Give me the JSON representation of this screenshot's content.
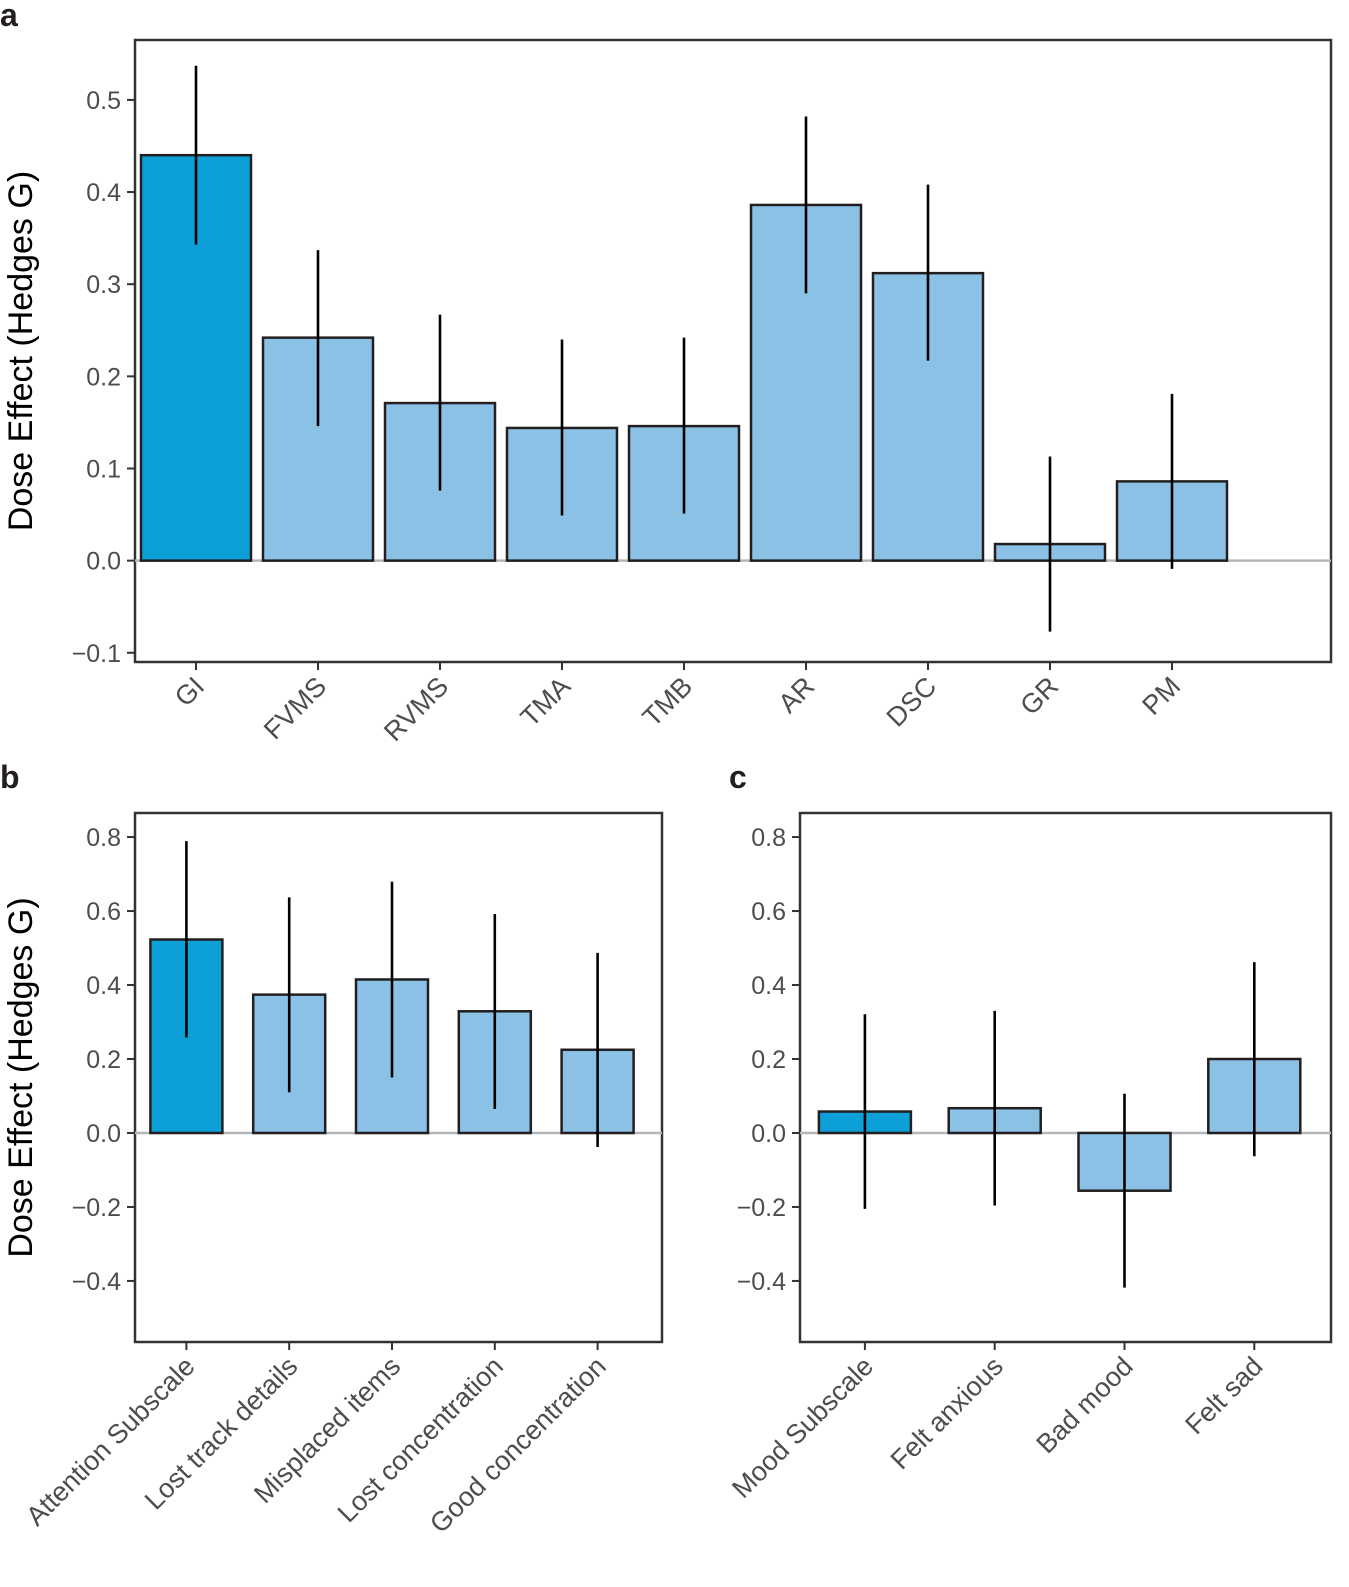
{
  "colors": {
    "highlight": "#0d9fd8",
    "normal": "#8cc1e6"
  },
  "chart_data": [
    {
      "panel": "a",
      "type": "bar",
      "ylabel": "Dose Effect (Hedges G)",
      "ylim": [
        -0.11,
        0.565
      ],
      "yticks": [
        -0.1,
        0.0,
        0.1,
        0.2,
        0.3,
        0.4,
        0.5
      ],
      "ytick_labels": [
        "−0.1",
        "0.0",
        "0.1",
        "0.2",
        "0.3",
        "0.4",
        "0.5"
      ],
      "categories": [
        "GI",
        "FVMS",
        "RVMS",
        "TMA",
        "TMB",
        "AR",
        "DSC",
        "GR",
        "PM"
      ],
      "values": [
        0.44,
        0.242,
        0.171,
        0.144,
        0.146,
        0.386,
        0.312,
        0.018,
        0.086
      ],
      "lower": [
        0.343,
        0.146,
        0.076,
        0.049,
        0.051,
        0.29,
        0.217,
        -0.077,
        -0.009
      ],
      "upper": [
        0.537,
        0.337,
        0.267,
        0.24,
        0.242,
        0.482,
        0.408,
        0.113,
        0.181
      ],
      "highlight": [
        true,
        false,
        false,
        false,
        false,
        false,
        false,
        false,
        false
      ]
    },
    {
      "panel": "b",
      "type": "bar",
      "ylabel": "Dose Effect (Hedges G)",
      "ylim": [
        -0.565,
        0.865
      ],
      "yticks": [
        -0.4,
        -0.2,
        0.0,
        0.2,
        0.4,
        0.6,
        0.8
      ],
      "ytick_labels": [
        "−0.4",
        "−0.2",
        "0.0",
        "0.2",
        "0.4",
        "0.6",
        "0.8"
      ],
      "categories": [
        "Attention Subscale",
        "Lost track details",
        "Misplaced items",
        "Lost concentration",
        "Good concentration"
      ],
      "values": [
        0.523,
        0.374,
        0.415,
        0.329,
        0.225
      ],
      "lower": [
        0.258,
        0.11,
        0.15,
        0.065,
        -0.038
      ],
      "upper": [
        0.789,
        0.637,
        0.679,
        0.592,
        0.487
      ],
      "highlight": [
        true,
        false,
        false,
        false,
        false
      ]
    },
    {
      "panel": "c",
      "type": "bar",
      "ylabel": "",
      "ylim": [
        -0.565,
        0.865
      ],
      "yticks": [
        -0.4,
        -0.2,
        0.0,
        0.2,
        0.4,
        0.6,
        0.8
      ],
      "ytick_labels": [
        "−0.4",
        "−0.2",
        "0.0",
        "0.2",
        "0.4",
        "0.6",
        "0.8"
      ],
      "categories": [
        "Mood Subscale",
        "Felt anxious",
        "Bad mood",
        "Felt sad"
      ],
      "values": [
        0.058,
        0.067,
        -0.156,
        0.2
      ],
      "lower": [
        -0.205,
        -0.196,
        -0.418,
        -0.063
      ],
      "upper": [
        0.321,
        0.33,
        0.106,
        0.462
      ],
      "highlight": [
        true,
        false,
        false,
        false
      ]
    }
  ]
}
